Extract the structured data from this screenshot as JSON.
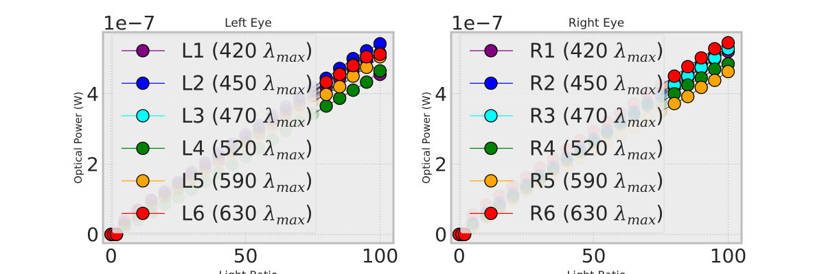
{
  "chart_data": [
    {
      "type": "scatter",
      "title": "Left Eye",
      "xlabel": "Light Ratio",
      "ylabel": "Optical Power (W)",
      "offset_text": "1e−7",
      "xlim": [
        -3,
        105
      ],
      "ylim": [
        -0.25,
        5.75
      ],
      "xticks": [
        0,
        50,
        100
      ],
      "xtick_labels": [
        "0",
        "50",
        "100"
      ],
      "yticks": [
        0,
        2,
        4
      ],
      "ytick_labels": [
        "0",
        "2",
        "4"
      ],
      "grid": true,
      "legend_placement": "upper left",
      "x": [
        0,
        1,
        2,
        5,
        10,
        15,
        20,
        25,
        30,
        35,
        40,
        45,
        50,
        55,
        60,
        65,
        70,
        75,
        80,
        85,
        90,
        95,
        100
      ],
      "series": [
        {
          "label": "L1 (420 ",
          "label_sym": "λ",
          "label_sub": "max",
          "label_end": ")",
          "color": "#800080",
          "values": [
            0,
            0,
            0,
            0.29,
            0.55,
            0.81,
            1.07,
            1.33,
            1.59,
            1.85,
            2.1,
            2.36,
            2.62,
            2.88,
            3.14,
            3.4,
            3.66,
            3.92,
            4.18,
            4.44,
            4.7,
            4.96,
            4.55
          ]
        },
        {
          "label": "L2 (450 ",
          "label_sym": "λ",
          "label_sub": "max",
          "label_end": ")",
          "color": "#0000ff",
          "values": [
            0,
            0,
            0,
            0.35,
            0.7,
            0.98,
            1.22,
            1.49,
            1.77,
            2.05,
            2.3,
            2.58,
            2.84,
            3.11,
            3.38,
            3.64,
            3.91,
            4.17,
            4.44,
            4.72,
            5.0,
            5.22,
            5.42
          ]
        },
        {
          "label": "L3 (470 ",
          "label_sym": "λ",
          "label_sub": "max",
          "label_end": ")",
          "color": "#00ffff",
          "values": [
            0,
            0,
            0,
            0.3,
            0.6,
            0.88,
            1.12,
            1.4,
            1.66,
            1.93,
            2.19,
            2.46,
            2.72,
            2.98,
            3.25,
            3.51,
            3.78,
            4.04,
            4.3,
            4.57,
            4.83,
            5.05,
            5.15
          ]
        },
        {
          "label": "L4 (520 ",
          "label_sym": "λ",
          "label_sub": "max",
          "label_end": ")",
          "color": "#008000",
          "values": [
            0,
            0,
            0,
            0.22,
            0.4,
            0.62,
            0.85,
            1.05,
            1.27,
            1.5,
            1.75,
            1.98,
            2.2,
            2.45,
            2.7,
            2.95,
            3.2,
            3.42,
            3.65,
            3.87,
            4.1,
            4.33,
            4.65
          ]
        },
        {
          "label": "L5 (590 ",
          "label_sym": "λ",
          "label_sub": "max",
          "label_end": ")",
          "color": "#ffa500",
          "values": [
            0,
            0,
            0,
            0.25,
            0.52,
            0.78,
            1.05,
            1.28,
            1.53,
            1.75,
            2.02,
            2.27,
            2.53,
            2.78,
            3.03,
            3.28,
            3.53,
            3.78,
            3.98,
            4.2,
            4.5,
            4.75,
            5.05
          ]
        },
        {
          "label": "L6 (630 ",
          "label_sym": "λ",
          "label_sub": "max",
          "label_end": ")",
          "color": "#ff0000",
          "values": [
            0,
            0,
            0,
            0.42,
            0.7,
            0.97,
            1.19,
            1.45,
            1.72,
            1.97,
            2.24,
            2.5,
            2.76,
            3.02,
            3.28,
            3.54,
            3.8,
            4.06,
            4.33,
            4.55,
            4.8,
            5.05,
            5.12
          ]
        }
      ]
    },
    {
      "type": "scatter",
      "title": "Right Eye",
      "xlabel": "Light Ratio",
      "ylabel": "Optical Power (W)",
      "offset_text": "1e−7",
      "xlim": [
        -3,
        105
      ],
      "ylim": [
        -0.25,
        5.75
      ],
      "xticks": [
        0,
        50,
        100
      ],
      "xtick_labels": [
        "0",
        "50",
        "100"
      ],
      "yticks": [
        0,
        2,
        4
      ],
      "ytick_labels": [
        "0",
        "2",
        "4"
      ],
      "grid": true,
      "legend_placement": "upper left",
      "x": [
        0,
        1,
        2,
        5,
        10,
        15,
        20,
        25,
        30,
        35,
        40,
        45,
        50,
        55,
        60,
        65,
        70,
        75,
        80,
        85,
        90,
        95,
        100
      ],
      "series": [
        {
          "label": "R1 (420 ",
          "label_sym": "λ",
          "label_sub": "max",
          "label_end": ")",
          "color": "#800080",
          "values": [
            0,
            0,
            0,
            0.3,
            0.56,
            0.82,
            1.08,
            1.34,
            1.6,
            1.86,
            2.12,
            2.38,
            2.64,
            2.9,
            3.16,
            3.42,
            3.68,
            3.94,
            4.2,
            4.46,
            4.72,
            4.98,
            5.2
          ]
        },
        {
          "label": "R2 (450 ",
          "label_sym": "λ",
          "label_sub": "max",
          "label_end": ")",
          "color": "#0000ff",
          "values": [
            0,
            0,
            0,
            0.33,
            0.63,
            0.9,
            1.16,
            1.42,
            1.68,
            1.94,
            2.2,
            2.46,
            2.72,
            2.98,
            3.24,
            3.5,
            3.76,
            4.02,
            4.3,
            4.55,
            4.83,
            5.1,
            5.3
          ]
        },
        {
          "label": "R3 (470 ",
          "label_sym": "λ",
          "label_sub": "max",
          "label_end": ")",
          "color": "#00ffff",
          "values": [
            0,
            0,
            0,
            0.3,
            0.58,
            0.86,
            1.12,
            1.38,
            1.65,
            1.9,
            2.16,
            2.42,
            2.69,
            2.95,
            3.2,
            3.46,
            3.72,
            3.98,
            4.25,
            4.5,
            4.75,
            5.02,
            5.28
          ]
        },
        {
          "label": "R4 (520 ",
          "label_sym": "λ",
          "label_sub": "max",
          "label_end": ")",
          "color": "#008000",
          "values": [
            0,
            0,
            0,
            0.25,
            0.52,
            0.78,
            1.04,
            1.3,
            1.56,
            1.82,
            2.08,
            2.34,
            2.6,
            2.86,
            3.12,
            3.38,
            3.64,
            3.75,
            4.0,
            4.25,
            4.45,
            4.7,
            4.85
          ]
        },
        {
          "label": "R5 (590 ",
          "label_sym": "λ",
          "label_sub": "max",
          "label_end": ")",
          "color": "#ffa500",
          "values": [
            0,
            0,
            0,
            0.2,
            0.48,
            0.72,
            0.98,
            1.22,
            1.46,
            1.7,
            1.95,
            2.18,
            2.4,
            2.62,
            2.85,
            3.05,
            3.3,
            3.5,
            3.72,
            3.92,
            4.18,
            4.38,
            4.63
          ]
        },
        {
          "label": "R6 (630 ",
          "label_sym": "λ",
          "label_sub": "max",
          "label_end": ")",
          "color": "#ff0000",
          "values": [
            0,
            0,
            0,
            0.55,
            0.85,
            1.1,
            1.37,
            1.63,
            1.9,
            2.15,
            2.42,
            2.68,
            2.94,
            3.2,
            3.45,
            3.72,
            3.98,
            4.24,
            4.5,
            4.77,
            5.02,
            5.28,
            5.45
          ]
        }
      ]
    }
  ]
}
